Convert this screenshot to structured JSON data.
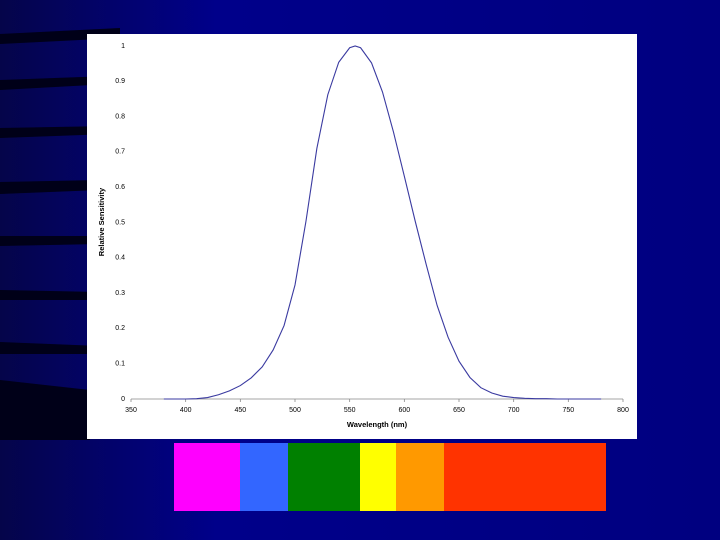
{
  "chart_data": {
    "type": "line",
    "x_label": "Wavelength (nm)",
    "y_label": "Relative Sensitivity",
    "x": [
      380,
      390,
      400,
      410,
      420,
      430,
      440,
      450,
      460,
      470,
      480,
      490,
      500,
      510,
      520,
      530,
      540,
      550,
      555,
      560,
      570,
      580,
      590,
      600,
      610,
      620,
      630,
      640,
      650,
      660,
      670,
      680,
      690,
      700,
      710,
      720,
      730,
      740,
      750,
      760,
      770,
      780
    ],
    "values": [
      0,
      0,
      0,
      0.001,
      0.004,
      0.012,
      0.023,
      0.038,
      0.06,
      0.091,
      0.139,
      0.208,
      0.323,
      0.503,
      0.71,
      0.862,
      0.954,
      0.995,
      1,
      0.995,
      0.952,
      0.87,
      0.757,
      0.631,
      0.503,
      0.381,
      0.265,
      0.175,
      0.107,
      0.061,
      0.032,
      0.017,
      0.008,
      0.004,
      0.002,
      0.001,
      0.001,
      0,
      0,
      0,
      0,
      0
    ],
    "color": "#3a3aa0",
    "xlim": [
      350,
      800
    ],
    "xticks": [
      350,
      400,
      450,
      500,
      550,
      600,
      650,
      700,
      750,
      800
    ],
    "ylim": [
      0,
      1
    ],
    "yticks": [
      0,
      0.1,
      0.2,
      0.3,
      0.4,
      0.5,
      0.6,
      0.7,
      0.8,
      0.9,
      1
    ]
  }
}
